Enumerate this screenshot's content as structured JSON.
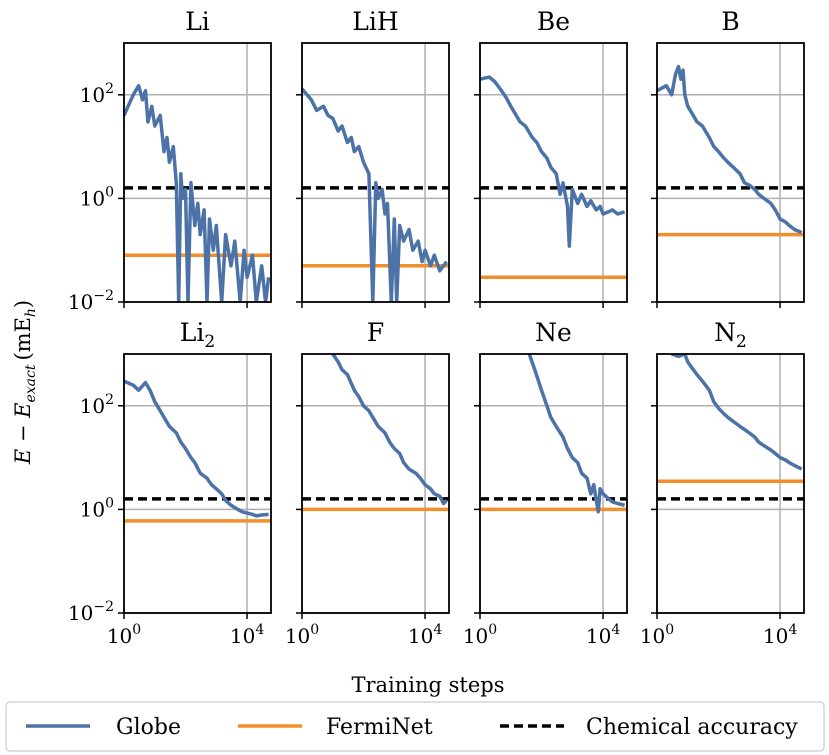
{
  "chart_data": {
    "type": "line",
    "xlabel": "Training steps",
    "ylabel_main": "E − E",
    "ylabel_sub": "exact",
    "ylabel_units": "(mE",
    "ylabel_units_sub": "h",
    "ylabel_close": ")",
    "xscale": "log",
    "yscale": "log",
    "xlim": [
      1,
      60000
    ],
    "ylim": [
      0.01,
      1000
    ],
    "xticks": [
      {
        "value": 1,
        "base": "10",
        "exp": "0"
      },
      {
        "value": 10000,
        "base": "10",
        "exp": "4"
      }
    ],
    "yticks": [
      {
        "value": 100,
        "base": "10",
        "exp": "2"
      },
      {
        "value": 1,
        "base": "10",
        "exp": "0"
      },
      {
        "value": 0.01,
        "base": "10",
        "exp": "−2"
      }
    ],
    "grid": true,
    "chemical_accuracy": 1.6,
    "legend": [
      {
        "name": "Globe",
        "color": "#4c72a8",
        "style": "solid"
      },
      {
        "name": "FermiNet",
        "color": "#f28e2b",
        "style": "solid"
      },
      {
        "name": "Chemical accuracy",
        "color": "#000000",
        "style": "dashed"
      }
    ],
    "panels": [
      {
        "title": "Li",
        "sub": "",
        "ferminet": 0.08,
        "globe": [
          [
            1,
            40
          ],
          [
            2,
            100
          ],
          [
            3,
            150
          ],
          [
            4,
            80
          ],
          [
            5,
            120
          ],
          [
            6,
            30
          ],
          [
            8,
            60
          ],
          [
            10,
            25
          ],
          [
            15,
            40
          ],
          [
            20,
            8
          ],
          [
            25,
            15
          ],
          [
            30,
            5
          ],
          [
            40,
            10
          ],
          [
            50,
            2
          ],
          [
            60,
            0.01
          ],
          [
            70,
            3
          ],
          [
            80,
            1
          ],
          [
            100,
            1.5
          ],
          [
            120,
            0.01
          ],
          [
            150,
            2
          ],
          [
            200,
            0.3
          ],
          [
            250,
            0.8
          ],
          [
            300,
            0.2
          ],
          [
            400,
            0.6
          ],
          [
            500,
            0.01
          ],
          [
            600,
            0.4
          ],
          [
            800,
            0.1
          ],
          [
            1000,
            0.3
          ],
          [
            1500,
            0.01
          ],
          [
            2000,
            0.2
          ],
          [
            3000,
            0.05
          ],
          [
            4000,
            0.15
          ],
          [
            6000,
            0.01
          ],
          [
            8000,
            0.1
          ],
          [
            10000,
            0.03
          ],
          [
            15000,
            0.08
          ],
          [
            20000,
            0.01
          ],
          [
            30000,
            0.05
          ],
          [
            40000,
            0.01
          ],
          [
            50000,
            0.03
          ]
        ]
      },
      {
        "title": "LiH",
        "sub": "",
        "ferminet": 0.05,
        "globe": [
          [
            1,
            130
          ],
          [
            2,
            80
          ],
          [
            3,
            50
          ],
          [
            5,
            60
          ],
          [
            7,
            40
          ],
          [
            10,
            35
          ],
          [
            15,
            20
          ],
          [
            20,
            25
          ],
          [
            30,
            12
          ],
          [
            40,
            15
          ],
          [
            50,
            8
          ],
          [
            70,
            10
          ],
          [
            100,
            5
          ],
          [
            150,
            3
          ],
          [
            200,
            0.01
          ],
          [
            250,
            2
          ],
          [
            300,
            1
          ],
          [
            400,
            1.5
          ],
          [
            500,
            0.5
          ],
          [
            600,
            0.8
          ],
          [
            800,
            0.01
          ],
          [
            1000,
            0.4
          ],
          [
            1200,
            0.01
          ],
          [
            1500,
            0.3
          ],
          [
            2000,
            0.15
          ],
          [
            3000,
            0.25
          ],
          [
            4000,
            0.1
          ],
          [
            6000,
            0.15
          ],
          [
            8000,
            0.06
          ],
          [
            10000,
            0.1
          ],
          [
            15000,
            0.05
          ],
          [
            20000,
            0.08
          ],
          [
            30000,
            0.04
          ],
          [
            50000,
            0.06
          ]
        ]
      },
      {
        "title": "Be",
        "sub": "",
        "ferminet": 0.03,
        "globe": [
          [
            1,
            200
          ],
          [
            2,
            220
          ],
          [
            3,
            180
          ],
          [
            5,
            120
          ],
          [
            7,
            90
          ],
          [
            10,
            60
          ],
          [
            15,
            40
          ],
          [
            20,
            30
          ],
          [
            30,
            25
          ],
          [
            50,
            15
          ],
          [
            70,
            12
          ],
          [
            100,
            8
          ],
          [
            150,
            6
          ],
          [
            200,
            4
          ],
          [
            300,
            3
          ],
          [
            400,
            1.2
          ],
          [
            500,
            2
          ],
          [
            700,
            0.7
          ],
          [
            800,
            0.12
          ],
          [
            1000,
            1.5
          ],
          [
            1500,
            0.8
          ],
          [
            2000,
            1.2
          ],
          [
            3000,
            0.7
          ],
          [
            4000,
            0.9
          ],
          [
            6000,
            0.6
          ],
          [
            8000,
            0.7
          ],
          [
            10000,
            0.5
          ],
          [
            15000,
            0.55
          ],
          [
            20000,
            0.6
          ],
          [
            30000,
            0.5
          ],
          [
            50000,
            0.55
          ]
        ]
      },
      {
        "title": "B",
        "sub": "",
        "ferminet": 0.2,
        "globe": [
          [
            1,
            120
          ],
          [
            2,
            150
          ],
          [
            3,
            100
          ],
          [
            4,
            250
          ],
          [
            5,
            350
          ],
          [
            6,
            200
          ],
          [
            7,
            300
          ],
          [
            8,
            100
          ],
          [
            10,
            60
          ],
          [
            15,
            40
          ],
          [
            20,
            30
          ],
          [
            30,
            25
          ],
          [
            50,
            15
          ],
          [
            70,
            10
          ],
          [
            100,
            8
          ],
          [
            150,
            6
          ],
          [
            200,
            5
          ],
          [
            300,
            4
          ],
          [
            500,
            3
          ],
          [
            700,
            2
          ],
          [
            1000,
            1.8
          ],
          [
            1500,
            1.5
          ],
          [
            2000,
            1.2
          ],
          [
            3000,
            1
          ],
          [
            5000,
            0.8
          ],
          [
            7000,
            0.6
          ],
          [
            10000,
            0.4
          ],
          [
            15000,
            0.35
          ],
          [
            20000,
            0.3
          ],
          [
            30000,
            0.25
          ],
          [
            50000,
            0.22
          ]
        ]
      },
      {
        "title": "Li",
        "sub": "2",
        "ferminet": 0.6,
        "globe": [
          [
            1,
            300
          ],
          [
            2,
            250
          ],
          [
            3,
            200
          ],
          [
            5,
            280
          ],
          [
            7,
            200
          ],
          [
            10,
            120
          ],
          [
            15,
            80
          ],
          [
            20,
            60
          ],
          [
            30,
            40
          ],
          [
            50,
            30
          ],
          [
            70,
            20
          ],
          [
            100,
            15
          ],
          [
            150,
            10
          ],
          [
            200,
            8
          ],
          [
            300,
            5
          ],
          [
            500,
            4
          ],
          [
            700,
            3
          ],
          [
            1000,
            2.5
          ],
          [
            1500,
            2
          ],
          [
            2000,
            1.5
          ],
          [
            3000,
            1.2
          ],
          [
            5000,
            1
          ],
          [
            7000,
            0.9
          ],
          [
            10000,
            0.85
          ],
          [
            15000,
            0.8
          ],
          [
            20000,
            0.75
          ],
          [
            30000,
            0.78
          ],
          [
            50000,
            0.8
          ]
        ]
      },
      {
        "title": "F",
        "sub": "",
        "ferminet": 1.0,
        "globe": [
          [
            10,
            1000
          ],
          [
            15,
            700
          ],
          [
            20,
            500
          ],
          [
            30,
            400
          ],
          [
            50,
            200
          ],
          [
            70,
            150
          ],
          [
            100,
            100
          ],
          [
            150,
            80
          ],
          [
            200,
            60
          ],
          [
            300,
            40
          ],
          [
            500,
            30
          ],
          [
            700,
            20
          ],
          [
            1000,
            15
          ],
          [
            1500,
            12
          ],
          [
            2000,
            8
          ],
          [
            3000,
            6
          ],
          [
            5000,
            5
          ],
          [
            7000,
            4
          ],
          [
            10000,
            3
          ],
          [
            15000,
            2.5
          ],
          [
            20000,
            2
          ],
          [
            30000,
            1.8
          ],
          [
            40000,
            1.3
          ],
          [
            50000,
            1.5
          ]
        ]
      },
      {
        "title": "Ne",
        "sub": "",
        "ferminet": 1.0,
        "globe": [
          [
            40,
            1000
          ],
          [
            60,
            500
          ],
          [
            80,
            300
          ],
          [
            100,
            200
          ],
          [
            150,
            100
          ],
          [
            200,
            60
          ],
          [
            300,
            40
          ],
          [
            500,
            25
          ],
          [
            700,
            15
          ],
          [
            1000,
            10
          ],
          [
            1500,
            8
          ],
          [
            2000,
            5
          ],
          [
            3000,
            4
          ],
          [
            4000,
            2
          ],
          [
            5000,
            3
          ],
          [
            6000,
            1.5
          ],
          [
            7000,
            0.9
          ],
          [
            8000,
            2.5
          ],
          [
            10000,
            2
          ],
          [
            15000,
            1.6
          ],
          [
            20000,
            1.4
          ],
          [
            30000,
            1.3
          ],
          [
            50000,
            1.2
          ]
        ]
      },
      {
        "title": "N",
        "sub": "2",
        "ferminet": 3.5,
        "globe": [
          [
            3,
            1000
          ],
          [
            5,
            900
          ],
          [
            8,
            1000
          ],
          [
            10,
            700
          ],
          [
            15,
            500
          ],
          [
            20,
            400
          ],
          [
            30,
            300
          ],
          [
            50,
            200
          ],
          [
            70,
            120
          ],
          [
            100,
            90
          ],
          [
            150,
            70
          ],
          [
            200,
            60
          ],
          [
            300,
            50
          ],
          [
            500,
            40
          ],
          [
            700,
            35
          ],
          [
            1000,
            30
          ],
          [
            1500,
            25
          ],
          [
            2000,
            20
          ],
          [
            3000,
            17
          ],
          [
            5000,
            14
          ],
          [
            7000,
            12
          ],
          [
            10000,
            10
          ],
          [
            15000,
            9
          ],
          [
            20000,
            8
          ],
          [
            30000,
            7
          ],
          [
            50000,
            6
          ]
        ]
      }
    ]
  }
}
